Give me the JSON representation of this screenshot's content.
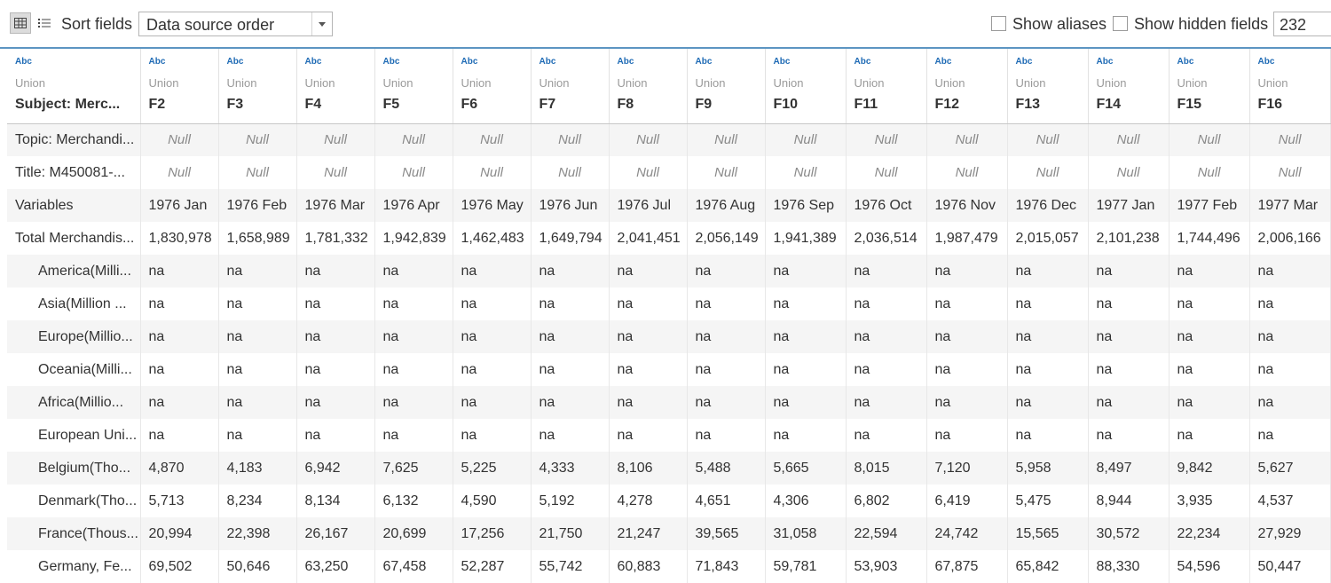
{
  "toolbar": {
    "sort_label": "Sort fields",
    "sort_value": "Data source order",
    "show_aliases_label": "Show aliases",
    "show_hidden_label": "Show hidden fields",
    "row_count": "232",
    "grid_view_icon": "grid-icon",
    "list_view_icon": "list-icon"
  },
  "columns": [
    {
      "type": "Abc",
      "source": "Union",
      "name": "Subject: Merc..."
    },
    {
      "type": "Abc",
      "source": "Union",
      "name": "F2"
    },
    {
      "type": "Abc",
      "source": "Union",
      "name": "F3"
    },
    {
      "type": "Abc",
      "source": "Union",
      "name": "F4"
    },
    {
      "type": "Abc",
      "source": "Union",
      "name": "F5"
    },
    {
      "type": "Abc",
      "source": "Union",
      "name": "F6"
    },
    {
      "type": "Abc",
      "source": "Union",
      "name": "F7"
    },
    {
      "type": "Abc",
      "source": "Union",
      "name": "F8"
    },
    {
      "type": "Abc",
      "source": "Union",
      "name": "F9"
    },
    {
      "type": "Abc",
      "source": "Union",
      "name": "F10"
    },
    {
      "type": "Abc",
      "source": "Union",
      "name": "F11"
    },
    {
      "type": "Abc",
      "source": "Union",
      "name": "F12"
    },
    {
      "type": "Abc",
      "source": "Union",
      "name": "F13"
    },
    {
      "type": "Abc",
      "source": "Union",
      "name": "F14"
    },
    {
      "type": "Abc",
      "source": "Union",
      "name": "F15"
    },
    {
      "type": "Abc",
      "source": "Union",
      "name": "F16"
    }
  ],
  "rows": [
    {
      "label": "Topic: Merchandi...",
      "indent": false,
      "cells": [
        "Null",
        "Null",
        "Null",
        "Null",
        "Null",
        "Null",
        "Null",
        "Null",
        "Null",
        "Null",
        "Null",
        "Null",
        "Null",
        "Null",
        "Null"
      ]
    },
    {
      "label": "Title: M450081-...",
      "indent": false,
      "cells": [
        "Null",
        "Null",
        "Null",
        "Null",
        "Null",
        "Null",
        "Null",
        "Null",
        "Null",
        "Null",
        "Null",
        "Null",
        "Null",
        "Null",
        "Null"
      ]
    },
    {
      "label": "Variables",
      "indent": false,
      "cells": [
        "1976 Jan",
        "1976 Feb",
        "1976 Mar",
        "1976 Apr",
        "1976 May",
        "1976 Jun",
        "1976 Jul",
        "1976 Aug",
        "1976 Sep",
        "1976 Oct",
        "1976 Nov",
        "1976 Dec",
        "1977 Jan",
        "1977 Feb",
        "1977 Mar"
      ]
    },
    {
      "label": "Total Merchandis...",
      "indent": false,
      "cells": [
        "1,830,978",
        "1,658,989",
        "1,781,332",
        "1,942,839",
        "1,462,483",
        "1,649,794",
        "2,041,451",
        "2,056,149",
        "1,941,389",
        "2,036,514",
        "1,987,479",
        "2,015,057",
        "2,101,238",
        "1,744,496",
        "2,006,166"
      ]
    },
    {
      "label": "America(Milli...",
      "indent": true,
      "cells": [
        "na",
        "na",
        "na",
        "na",
        "na",
        "na",
        "na",
        "na",
        "na",
        "na",
        "na",
        "na",
        "na",
        "na",
        "na"
      ]
    },
    {
      "label": "Asia(Million ...",
      "indent": true,
      "cells": [
        "na",
        "na",
        "na",
        "na",
        "na",
        "na",
        "na",
        "na",
        "na",
        "na",
        "na",
        "na",
        "na",
        "na",
        "na"
      ]
    },
    {
      "label": "Europe(Millio...",
      "indent": true,
      "cells": [
        "na",
        "na",
        "na",
        "na",
        "na",
        "na",
        "na",
        "na",
        "na",
        "na",
        "na",
        "na",
        "na",
        "na",
        "na"
      ]
    },
    {
      "label": "Oceania(Milli...",
      "indent": true,
      "cells": [
        "na",
        "na",
        "na",
        "na",
        "na",
        "na",
        "na",
        "na",
        "na",
        "na",
        "na",
        "na",
        "na",
        "na",
        "na"
      ]
    },
    {
      "label": "Africa(Millio...",
      "indent": true,
      "cells": [
        "na",
        "na",
        "na",
        "na",
        "na",
        "na",
        "na",
        "na",
        "na",
        "na",
        "na",
        "na",
        "na",
        "na",
        "na"
      ]
    },
    {
      "label": "European Uni...",
      "indent": true,
      "cells": [
        "na",
        "na",
        "na",
        "na",
        "na",
        "na",
        "na",
        "na",
        "na",
        "na",
        "na",
        "na",
        "na",
        "na",
        "na"
      ]
    },
    {
      "label": "Belgium(Tho...",
      "indent": true,
      "cells": [
        "4,870",
        "4,183",
        "6,942",
        "7,625",
        "5,225",
        "4,333",
        "8,106",
        "5,488",
        "5,665",
        "8,015",
        "7,120",
        "5,958",
        "8,497",
        "9,842",
        "5,627"
      ]
    },
    {
      "label": "Denmark(Tho...",
      "indent": true,
      "cells": [
        "5,713",
        "8,234",
        "8,134",
        "6,132",
        "4,590",
        "5,192",
        "4,278",
        "4,651",
        "4,306",
        "6,802",
        "6,419",
        "5,475",
        "8,944",
        "3,935",
        "4,537"
      ]
    },
    {
      "label": "France(Thous...",
      "indent": true,
      "cells": [
        "20,994",
        "22,398",
        "26,167",
        "20,699",
        "17,256",
        "21,750",
        "21,247",
        "39,565",
        "31,058",
        "22,594",
        "24,742",
        "15,565",
        "30,572",
        "22,234",
        "27,929"
      ]
    },
    {
      "label": "Germany, Fe...",
      "indent": true,
      "cells": [
        "69,502",
        "50,646",
        "63,250",
        "67,458",
        "52,287",
        "55,742",
        "60,883",
        "71,843",
        "59,781",
        "53,903",
        "67,875",
        "65,842",
        "88,330",
        "54,596",
        "50,447"
      ]
    }
  ]
}
